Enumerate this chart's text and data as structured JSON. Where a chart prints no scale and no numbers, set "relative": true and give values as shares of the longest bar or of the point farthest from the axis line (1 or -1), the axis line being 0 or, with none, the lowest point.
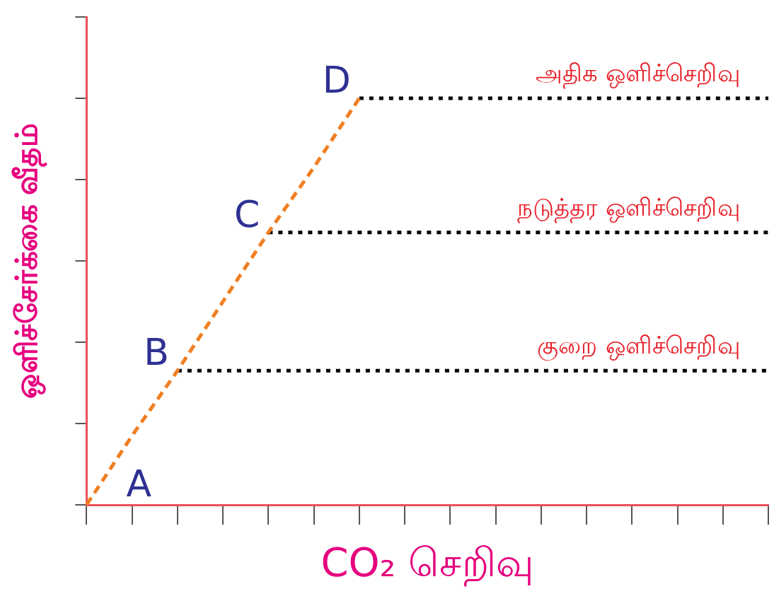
{
  "chart_data": {
    "type": "line",
    "relative": true,
    "xlabel": "CO₂ செறிவு",
    "ylabel": "ஒளிச்சேர்க்கை வீதம்",
    "categories": [
      null,
      null,
      null,
      null,
      null,
      null,
      null,
      null,
      null,
      null,
      null,
      null,
      null,
      null,
      null,
      null
    ],
    "series": [
      {
        "color": "#f07f22",
        "line_style": "dashed",
        "values": [
          0,
          0.17,
          0.33,
          0.5,
          0.67,
          0.83,
          1,
          null,
          null,
          null,
          null,
          null,
          null,
          null,
          null,
          null
        ]
      },
      {
        "name": "அதிக ஒளிச்செறிவு",
        "color": "#000000",
        "line_style": "dotted",
        "values": [
          null,
          null,
          null,
          null,
          null,
          null,
          1,
          1,
          1,
          1,
          1,
          1,
          1,
          1,
          1,
          1
        ]
      },
      {
        "name": "நடுத்தர ஒளிச்செறிவு",
        "color": "#000000",
        "line_style": "dotted",
        "values": [
          null,
          null,
          null,
          null,
          0.67,
          0.67,
          0.67,
          0.67,
          0.67,
          0.67,
          0.67,
          0.67,
          0.67,
          0.67,
          0.67,
          0.67
        ]
      },
      {
        "name": "குறை ஒளிச்செறிவு",
        "color": "#000000",
        "line_style": "dotted",
        "values": [
          null,
          null,
          0.33,
          0.33,
          0.33,
          0.33,
          0.33,
          0.33,
          0.33,
          0.33,
          0.33,
          0.33,
          0.33,
          0.33,
          0.33,
          0.33
        ]
      }
    ],
    "annotations": [
      "A",
      "B",
      "C",
      "D"
    ],
    "marker": "none",
    "legend": false,
    "grid": false
  }
}
